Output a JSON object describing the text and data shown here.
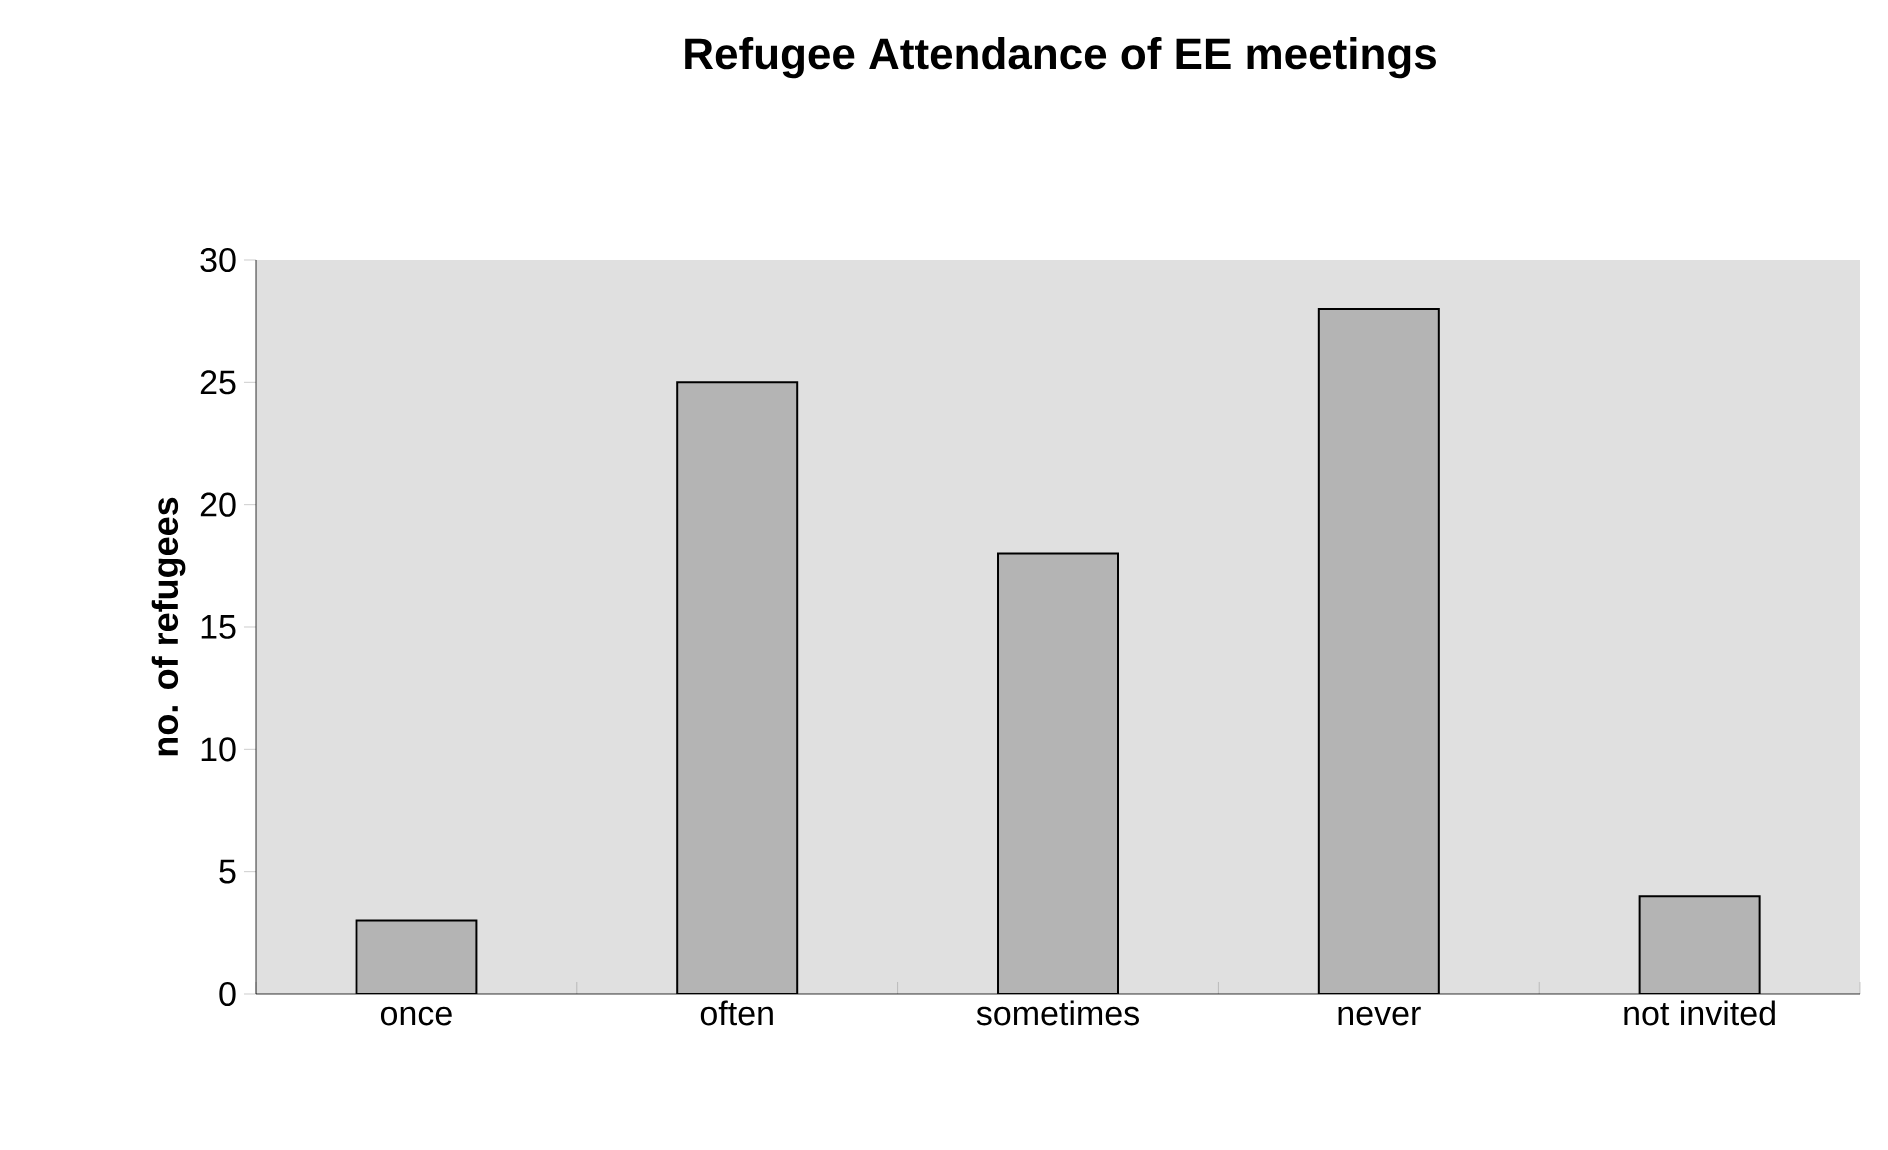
{
  "chart_data": {
    "type": "bar",
    "title": "Refugee Attendance of EE meetings",
    "ylabel": "no. of refugees",
    "categories": [
      "once",
      "often",
      "sometimes",
      "never",
      "not invited"
    ],
    "values": [
      3,
      25,
      18,
      28,
      4
    ],
    "color": "#b4b4b4",
    "ylim": [
      0,
      30
    ],
    "yticks": [
      0,
      5,
      10,
      15,
      20,
      25,
      30
    ],
    "grid": false
  }
}
